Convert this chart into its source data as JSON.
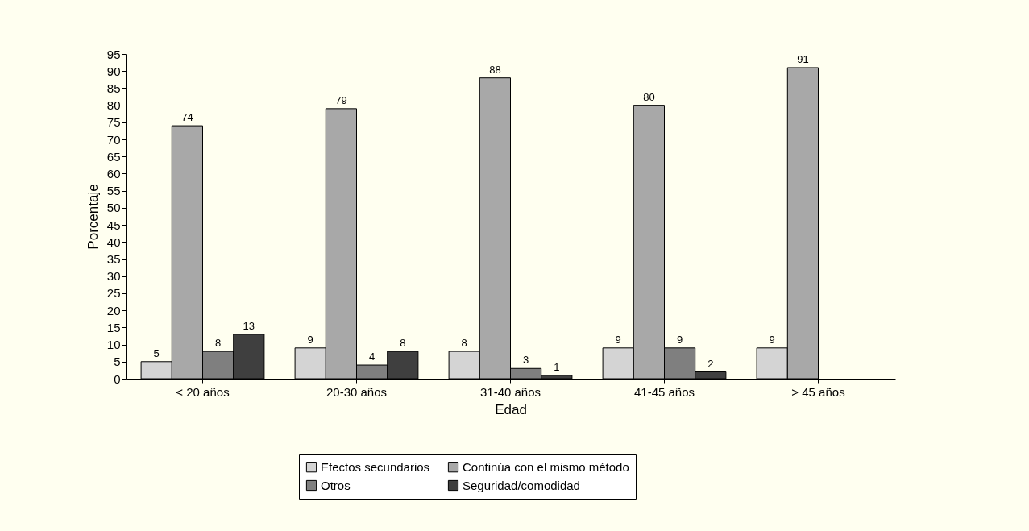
{
  "chart_data": {
    "type": "bar",
    "xlabel": "Edad",
    "ylabel": "Porcentaje",
    "categories": [
      "< 20 años",
      "20-30 años",
      "31-40 años",
      "41-45 años",
      "> 45 años"
    ],
    "series": [
      {
        "name": "Efectos secundarios",
        "color": "#d4d4d4",
        "values": [
          5,
          9,
          8,
          9,
          9
        ]
      },
      {
        "name": "Continúa con el mismo método",
        "color": "#a8a8a8",
        "values": [
          74,
          79,
          88,
          80,
          91
        ]
      },
      {
        "name": "Otros",
        "color": "#7f7f7f",
        "values": [
          8,
          4,
          3,
          9,
          null
        ]
      },
      {
        "name": "Seguridad/comodidad",
        "color": "#3f3f3f",
        "values": [
          13,
          8,
          1,
          2,
          null
        ]
      }
    ],
    "ylim": [
      0,
      95
    ],
    "yticks": [
      0,
      5,
      10,
      15,
      20,
      25,
      30,
      35,
      40,
      45,
      50,
      55,
      60,
      65,
      70,
      75,
      80,
      85,
      90,
      95
    ],
    "grid": false,
    "legend": "bottom",
    "data_labels": true
  }
}
